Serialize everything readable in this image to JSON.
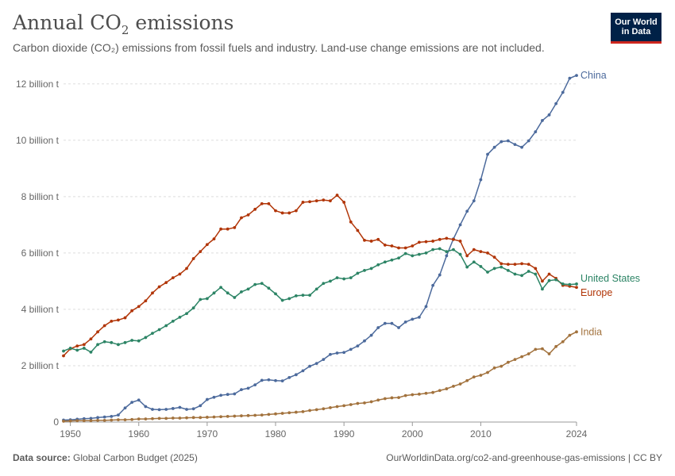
{
  "header": {
    "title_main": "Annual CO",
    "title_sub": "2",
    "title_end": " emissions",
    "subtitle": "Carbon dioxide (CO₂) emissions from fossil fuels and industry. Land-use change emissions are not included.",
    "logo_line1": "Our World",
    "logo_line2": "in Data"
  },
  "footer": {
    "source_label": "Data source:",
    "source_text": "Global Carbon Budget (2025)",
    "link_text": "OurWorldinData.org/co2-and-greenhouse-gas-emissions | CC BY"
  },
  "chart_data": {
    "type": "line",
    "title": "Annual CO₂ emissions",
    "xlim": [
      1949,
      2024
    ],
    "ylim": [
      0,
      12.5
    ],
    "x_ticks": [
      1950,
      1960,
      1970,
      1980,
      1990,
      2000,
      2010,
      2024
    ],
    "y_ticks": [
      0,
      2,
      4,
      6,
      8,
      10,
      12
    ],
    "y_tick_labels": [
      "0",
      "2 billion t",
      "4 billion t",
      "6 billion t",
      "8 billion t",
      "10 billion t",
      "12 billion t"
    ],
    "grid": true,
    "series": [
      {
        "name": "China",
        "color": "#4c6a9c",
        "x": [
          1949,
          1950,
          1951,
          1952,
          1953,
          1954,
          1955,
          1956,
          1957,
          1958,
          1959,
          1960,
          1961,
          1962,
          1963,
          1964,
          1965,
          1966,
          1967,
          1968,
          1969,
          1970,
          1971,
          1972,
          1973,
          1974,
          1975,
          1976,
          1977,
          1978,
          1979,
          1980,
          1981,
          1982,
          1983,
          1984,
          1985,
          1986,
          1987,
          1988,
          1989,
          1990,
          1991,
          1992,
          1993,
          1994,
          1995,
          1996,
          1997,
          1998,
          1999,
          2000,
          2001,
          2002,
          2003,
          2004,
          2005,
          2006,
          2007,
          2008,
          2009,
          2010,
          2011,
          2012,
          2013,
          2014,
          2015,
          2016,
          2017,
          2018,
          2019,
          2020,
          2021,
          2022,
          2023,
          2024
        ],
        "values": [
          0.07,
          0.08,
          0.1,
          0.12,
          0.13,
          0.16,
          0.18,
          0.2,
          0.25,
          0.5,
          0.7,
          0.78,
          0.55,
          0.45,
          0.44,
          0.45,
          0.48,
          0.52,
          0.45,
          0.47,
          0.58,
          0.8,
          0.88,
          0.95,
          0.98,
          1.0,
          1.15,
          1.2,
          1.32,
          1.48,
          1.5,
          1.47,
          1.46,
          1.58,
          1.68,
          1.82,
          1.98,
          2.08,
          2.22,
          2.4,
          2.45,
          2.47,
          2.58,
          2.7,
          2.88,
          3.08,
          3.35,
          3.5,
          3.5,
          3.35,
          3.55,
          3.65,
          3.72,
          4.1,
          4.85,
          5.22,
          5.9,
          6.5,
          7.0,
          7.48,
          7.85,
          8.6,
          9.5,
          9.75,
          9.95,
          9.98,
          9.85,
          9.75,
          9.98,
          10.3,
          10.7,
          10.9,
          11.3,
          11.7,
          12.2,
          12.3
        ]
      },
      {
        "name": "Europe",
        "color": "#b13507",
        "x": [
          1949,
          1950,
          1951,
          1952,
          1953,
          1954,
          1955,
          1956,
          1957,
          1958,
          1959,
          1960,
          1961,
          1962,
          1963,
          1964,
          1965,
          1966,
          1967,
          1968,
          1969,
          1970,
          1971,
          1972,
          1973,
          1974,
          1975,
          1976,
          1977,
          1978,
          1979,
          1980,
          1981,
          1982,
          1983,
          1984,
          1985,
          1986,
          1987,
          1988,
          1989,
          1990,
          1991,
          1992,
          1993,
          1994,
          1995,
          1996,
          1997,
          1998,
          1999,
          2000,
          2001,
          2002,
          2003,
          2004,
          2005,
          2006,
          2007,
          2008,
          2009,
          2010,
          2011,
          2012,
          2013,
          2014,
          2015,
          2016,
          2017,
          2018,
          2019,
          2020,
          2021,
          2022,
          2023,
          2024
        ],
        "values": [
          2.35,
          2.6,
          2.7,
          2.75,
          2.95,
          3.2,
          3.42,
          3.58,
          3.62,
          3.7,
          3.95,
          4.1,
          4.3,
          4.58,
          4.8,
          4.95,
          5.12,
          5.25,
          5.45,
          5.8,
          6.05,
          6.3,
          6.5,
          6.85,
          6.85,
          6.9,
          7.25,
          7.35,
          7.55,
          7.75,
          7.75,
          7.5,
          7.42,
          7.42,
          7.5,
          7.8,
          7.82,
          7.85,
          7.88,
          7.85,
          8.05,
          7.8,
          7.1,
          6.8,
          6.45,
          6.42,
          6.48,
          6.28,
          6.25,
          6.18,
          6.18,
          6.25,
          6.38,
          6.4,
          6.42,
          6.48,
          6.52,
          6.48,
          6.42,
          5.9,
          6.12,
          6.05,
          6.0,
          5.85,
          5.62,
          5.6,
          5.6,
          5.62,
          5.6,
          5.45,
          5.0,
          5.25,
          5.1,
          4.85,
          4.82,
          4.78
        ]
      },
      {
        "name": "United States",
        "color": "#2c8465",
        "x": [
          1949,
          1950,
          1951,
          1952,
          1953,
          1954,
          1955,
          1956,
          1957,
          1958,
          1959,
          1960,
          1961,
          1962,
          1963,
          1964,
          1965,
          1966,
          1967,
          1968,
          1969,
          1970,
          1971,
          1972,
          1973,
          1974,
          1975,
          1976,
          1977,
          1978,
          1979,
          1980,
          1981,
          1982,
          1983,
          1984,
          1985,
          1986,
          1987,
          1988,
          1989,
          1990,
          1991,
          1992,
          1993,
          1994,
          1995,
          1996,
          1997,
          1998,
          1999,
          2000,
          2001,
          2002,
          2003,
          2004,
          2005,
          2006,
          2007,
          2008,
          2009,
          2010,
          2011,
          2012,
          2013,
          2014,
          2015,
          2016,
          2017,
          2018,
          2019,
          2020,
          2021,
          2022,
          2023,
          2024
        ],
        "values": [
          2.52,
          2.62,
          2.55,
          2.62,
          2.48,
          2.75,
          2.85,
          2.82,
          2.75,
          2.82,
          2.9,
          2.88,
          3.0,
          3.15,
          3.28,
          3.42,
          3.58,
          3.72,
          3.85,
          4.05,
          4.35,
          4.38,
          4.58,
          4.78,
          4.58,
          4.42,
          4.62,
          4.72,
          4.88,
          4.92,
          4.75,
          4.55,
          4.32,
          4.38,
          4.48,
          4.5,
          4.5,
          4.72,
          4.92,
          5.0,
          5.12,
          5.08,
          5.12,
          5.28,
          5.38,
          5.45,
          5.58,
          5.68,
          5.75,
          5.82,
          5.98,
          5.9,
          5.95,
          6.0,
          6.12,
          6.15,
          6.05,
          6.12,
          5.95,
          5.5,
          5.68,
          5.52,
          5.32,
          5.45,
          5.5,
          5.38,
          5.25,
          5.2,
          5.35,
          5.25,
          4.72,
          5.02,
          5.05,
          4.9,
          4.88,
          4.9
        ]
      },
      {
        "name": "India",
        "color": "#a2723d",
        "x": [
          1949,
          1950,
          1951,
          1952,
          1953,
          1954,
          1955,
          1956,
          1957,
          1958,
          1959,
          1960,
          1961,
          1962,
          1963,
          1964,
          1965,
          1966,
          1967,
          1968,
          1969,
          1970,
          1971,
          1972,
          1973,
          1974,
          1975,
          1976,
          1977,
          1978,
          1979,
          1980,
          1981,
          1982,
          1983,
          1984,
          1985,
          1986,
          1987,
          1988,
          1989,
          1990,
          1991,
          1992,
          1993,
          1994,
          1995,
          1996,
          1997,
          1998,
          1999,
          2000,
          2001,
          2002,
          2003,
          2004,
          2005,
          2006,
          2007,
          2008,
          2009,
          2010,
          2011,
          2012,
          2013,
          2014,
          2015,
          2016,
          2017,
          2018,
          2019,
          2020,
          2021,
          2022,
          2023,
          2024
        ],
        "values": [
          0.03,
          0.04,
          0.05,
          0.05,
          0.05,
          0.06,
          0.06,
          0.07,
          0.08,
          0.08,
          0.09,
          0.11,
          0.11,
          0.12,
          0.13,
          0.13,
          0.14,
          0.14,
          0.15,
          0.16,
          0.16,
          0.17,
          0.18,
          0.19,
          0.2,
          0.21,
          0.22,
          0.23,
          0.24,
          0.25,
          0.27,
          0.29,
          0.31,
          0.33,
          0.35,
          0.37,
          0.41,
          0.44,
          0.47,
          0.51,
          0.55,
          0.58,
          0.62,
          0.66,
          0.68,
          0.72,
          0.78,
          0.83,
          0.86,
          0.87,
          0.94,
          0.97,
          0.99,
          1.02,
          1.05,
          1.12,
          1.18,
          1.27,
          1.35,
          1.47,
          1.6,
          1.66,
          1.76,
          1.92,
          1.98,
          2.12,
          2.22,
          2.32,
          2.42,
          2.58,
          2.6,
          2.42,
          2.68,
          2.85,
          3.08,
          3.2
        ]
      }
    ]
  }
}
